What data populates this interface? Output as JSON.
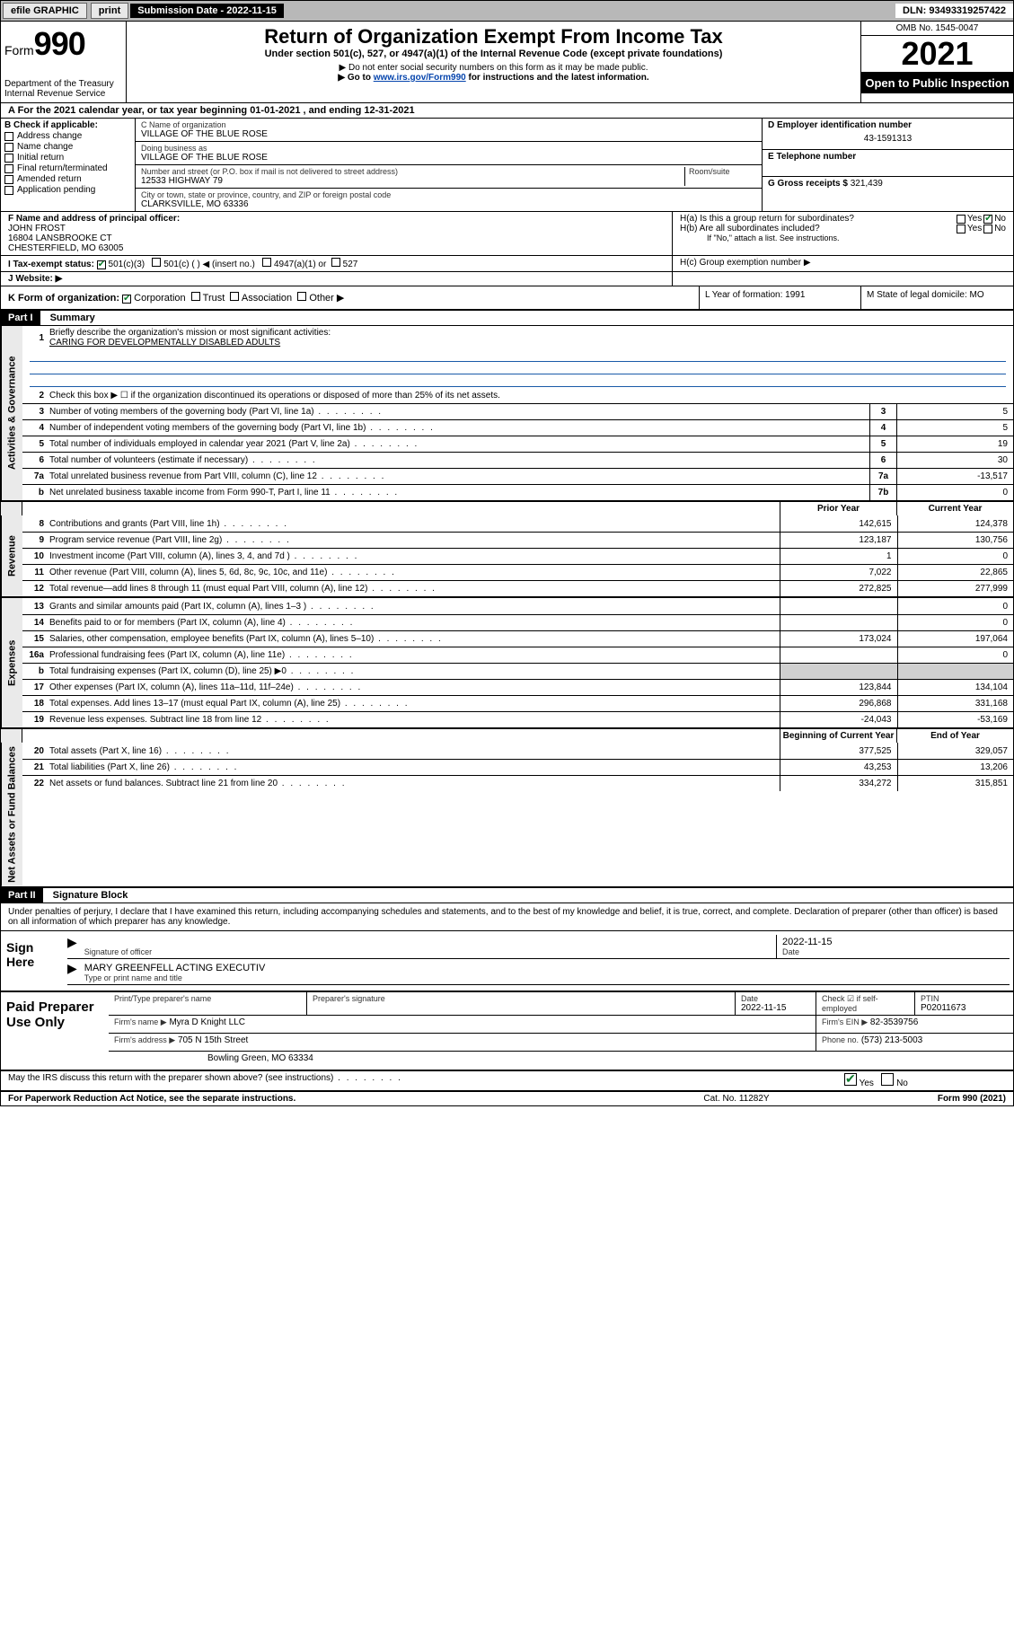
{
  "topbar": {
    "efile": "efile GRAPHIC",
    "print": "print",
    "sub_date_label": "Submission Date - 2022-11-15",
    "dln": "DLN: 93493319257422"
  },
  "header": {
    "form_label": "Form",
    "form_num": "990",
    "dept": "Department of the Treasury\nInternal Revenue Service",
    "title": "Return of Organization Exempt From Income Tax",
    "under": "Under section 501(c), 527, or 4947(a)(1) of the Internal Revenue Code (except private foundations)",
    "nossn": "▶ Do not enter social security numbers on this form as it may be made public.",
    "goto_pre": "▶ Go to ",
    "goto_link": "www.irs.gov/Form990",
    "goto_post": " for instructions and the latest information.",
    "omb": "OMB No. 1545-0047",
    "year": "2021",
    "open": "Open to Public Inspection"
  },
  "period": {
    "text": "A For the 2021 calendar year, or tax year beginning 01-01-2021   , and ending 12-31-2021"
  },
  "boxB": {
    "label": "B Check if applicable:",
    "items": [
      "Address change",
      "Name change",
      "Initial return",
      "Final return/terminated",
      "Amended return",
      "Application pending"
    ]
  },
  "boxC": {
    "name_label": "C Name of organization",
    "name": "VILLAGE OF THE BLUE ROSE",
    "dba_label": "Doing business as",
    "dba": "VILLAGE OF THE BLUE ROSE",
    "addr_label": "Number and street (or P.O. box if mail is not delivered to street address)",
    "room_label": "Room/suite",
    "addr": "12533 HIGHWAY 79",
    "city_label": "City or town, state or province, country, and ZIP or foreign postal code",
    "city": "CLARKSVILLE, MO  63336"
  },
  "boxD": {
    "label": "D Employer identification number",
    "val": "43-1591313"
  },
  "boxE": {
    "label": "E Telephone number"
  },
  "boxG": {
    "label": "G Gross receipts $",
    "val": "321,439"
  },
  "boxF": {
    "label": "F Name and address of principal officer:",
    "name": "JOHN FROST",
    "addr1": "16804 LANSBROOKE CT",
    "addr2": "CHESTERFIELD, MO  63005"
  },
  "boxH": {
    "a": "H(a)  Is this a group return for subordinates?",
    "b": "H(b)  Are all subordinates included?",
    "b_note": "If \"No,\" attach a list. See instructions.",
    "c": "H(c)  Group exemption number ▶",
    "yes": "Yes",
    "no": "No"
  },
  "rowI": {
    "label": "I   Tax-exempt status:",
    "opt1": "501(c)(3)",
    "opt2": "501(c) (   ) ◀ (insert no.)",
    "opt3": "4947(a)(1) or",
    "opt4": "527"
  },
  "rowJ": {
    "label": "J   Website: ▶"
  },
  "rowK": {
    "label": "K Form of organization:",
    "opts": [
      "Corporation",
      "Trust",
      "Association",
      "Other ▶"
    ],
    "L": "L Year of formation: 1991",
    "M": "M State of legal domicile: MO"
  },
  "part1": {
    "header": "Part I",
    "title": "Summary",
    "side_gov": "Activities & Governance",
    "side_rev": "Revenue",
    "side_exp": "Expenses",
    "side_net": "Net Assets or Fund Balances",
    "l1_label": "Briefly describe the organization's mission or most significant activities:",
    "l1_text": "CARING FOR DEVELOPMENTALLY DISABLED ADULTS",
    "l2": "Check this box ▶ ☐  if the organization discontinued its operations or disposed of more than 25% of its net assets.",
    "lines_gov": [
      {
        "n": "3",
        "t": "Number of voting members of the governing body (Part VI, line 1a)",
        "b": "3",
        "v": "5"
      },
      {
        "n": "4",
        "t": "Number of independent voting members of the governing body (Part VI, line 1b)",
        "b": "4",
        "v": "5"
      },
      {
        "n": "5",
        "t": "Total number of individuals employed in calendar year 2021 (Part V, line 2a)",
        "b": "5",
        "v": "19"
      },
      {
        "n": "6",
        "t": "Total number of volunteers (estimate if necessary)",
        "b": "6",
        "v": "30"
      },
      {
        "n": "7a",
        "t": "Total unrelated business revenue from Part VIII, column (C), line 12",
        "b": "7a",
        "v": "-13,517"
      },
      {
        "n": "b",
        "t": "Net unrelated business taxable income from Form 990-T, Part I, line 11",
        "b": "7b",
        "v": "0"
      }
    ],
    "col_prior": "Prior Year",
    "col_curr": "Current Year",
    "lines_rev": [
      {
        "n": "8",
        "t": "Contributions and grants (Part VIII, line 1h)",
        "p": "142,615",
        "c": "124,378"
      },
      {
        "n": "9",
        "t": "Program service revenue (Part VIII, line 2g)",
        "p": "123,187",
        "c": "130,756"
      },
      {
        "n": "10",
        "t": "Investment income (Part VIII, column (A), lines 3, 4, and 7d )",
        "p": "1",
        "c": "0"
      },
      {
        "n": "11",
        "t": "Other revenue (Part VIII, column (A), lines 5, 6d, 8c, 9c, 10c, and 11e)",
        "p": "7,022",
        "c": "22,865"
      },
      {
        "n": "12",
        "t": "Total revenue—add lines 8 through 11 (must equal Part VIII, column (A), line 12)",
        "p": "272,825",
        "c": "277,999"
      }
    ],
    "lines_exp": [
      {
        "n": "13",
        "t": "Grants and similar amounts paid (Part IX, column (A), lines 1–3 )",
        "p": "",
        "c": "0"
      },
      {
        "n": "14",
        "t": "Benefits paid to or for members (Part IX, column (A), line 4)",
        "p": "",
        "c": "0"
      },
      {
        "n": "15",
        "t": "Salaries, other compensation, employee benefits (Part IX, column (A), lines 5–10)",
        "p": "173,024",
        "c": "197,064"
      },
      {
        "n": "16a",
        "t": "Professional fundraising fees (Part IX, column (A), line 11e)",
        "p": "",
        "c": "0"
      },
      {
        "n": "b",
        "t": "Total fundraising expenses (Part IX, column (D), line 25) ▶0",
        "p": "shade",
        "c": "shade"
      },
      {
        "n": "17",
        "t": "Other expenses (Part IX, column (A), lines 11a–11d, 11f–24e)",
        "p": "123,844",
        "c": "134,104"
      },
      {
        "n": "18",
        "t": "Total expenses. Add lines 13–17 (must equal Part IX, column (A), line 25)",
        "p": "296,868",
        "c": "331,168"
      },
      {
        "n": "19",
        "t": "Revenue less expenses. Subtract line 18 from line 12",
        "p": "-24,043",
        "c": "-53,169"
      }
    ],
    "col_begin": "Beginning of Current Year",
    "col_end": "End of Year",
    "lines_net": [
      {
        "n": "20",
        "t": "Total assets (Part X, line 16)",
        "p": "377,525",
        "c": "329,057"
      },
      {
        "n": "21",
        "t": "Total liabilities (Part X, line 26)",
        "p": "43,253",
        "c": "13,206"
      },
      {
        "n": "22",
        "t": "Net assets or fund balances. Subtract line 21 from line 20",
        "p": "334,272",
        "c": "315,851"
      }
    ]
  },
  "part2": {
    "header": "Part II",
    "title": "Signature Block",
    "decl": "Under penalties of perjury, I declare that I have examined this return, including accompanying schedules and statements, and to the best of my knowledge and belief, it is true, correct, and complete. Declaration of preparer (other than officer) is based on all information of which preparer has any knowledge.",
    "sign_here": "Sign Here",
    "sig_officer": "Signature of officer",
    "sig_date": "2022-11-15",
    "date_label": "Date",
    "officer_name": "MARY GREENFELL ACTING EXECUTIV",
    "type_name": "Type or print name and title",
    "paid_prep": "Paid Preparer Use Only",
    "prep_name_label": "Print/Type preparer's name",
    "prep_sig_label": "Preparer's signature",
    "prep_date_label": "Date",
    "prep_date": "2022-11-15",
    "check_if": "Check ☑ if self-employed",
    "ptin_label": "PTIN",
    "ptin": "P02011673",
    "firm_name_label": "Firm's name    ▶",
    "firm_name": "Myra D Knight LLC",
    "firm_ein_label": "Firm's EIN ▶",
    "firm_ein": "82-3539756",
    "firm_addr_label": "Firm's address ▶",
    "firm_addr1": "705 N 15th Street",
    "firm_addr2": "Bowling Green, MO  63334",
    "phone_label": "Phone no.",
    "phone": "(573) 213-5003",
    "may_irs": "May the IRS discuss this return with the preparer shown above? (see instructions)",
    "yes": "Yes",
    "no": "No"
  },
  "footer": {
    "left": "For Paperwork Reduction Act Notice, see the separate instructions.",
    "mid": "Cat. No. 11282Y",
    "right": "Form 990 (2021)"
  }
}
